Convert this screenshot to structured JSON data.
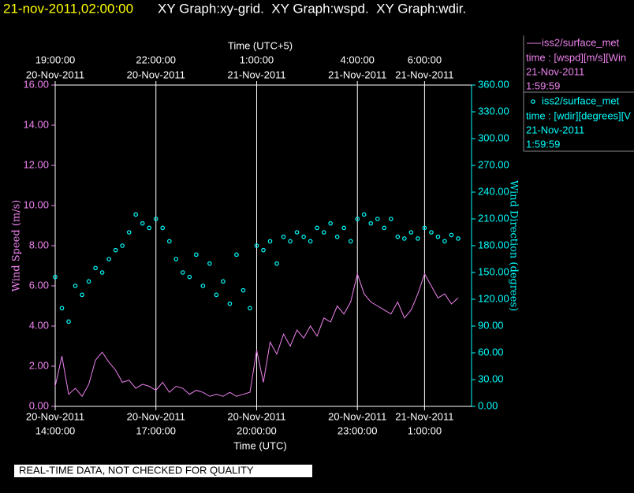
{
  "header": {
    "timestamp": "21-nov-2011,02:00:00",
    "title": "XY Graph:xy-grid.  XY Graph:wspd.  XY Graph:wdir."
  },
  "chart_data": {
    "type": "line",
    "xlabel": "Time (UTC)",
    "x2label": "Time (UTC+5)",
    "ylabel": "Wind Speed (m/s)",
    "y2label": "Wind Direction (degrees)",
    "xlim": [
      14,
      26.4
    ],
    "xticks": [
      {
        "value": 14,
        "label": [
          "20-Nov-2011",
          "14:00:00"
        ]
      },
      {
        "value": 17,
        "label": [
          "20-Nov-2011",
          "17:00:00"
        ]
      },
      {
        "value": 20,
        "label": [
          "20-Nov-2011",
          "20:00:00"
        ]
      },
      {
        "value": 23,
        "label": [
          "20-Nov-2011",
          "23:00:00"
        ]
      },
      {
        "value": 25,
        "label": [
          "21-Nov-2011",
          "1:00:00"
        ]
      }
    ],
    "x2ticks": [
      {
        "value": 14,
        "label": [
          "19:00:00",
          "20-Nov-2011"
        ]
      },
      {
        "value": 17,
        "label": [
          "22:00:00",
          "20-Nov-2011"
        ]
      },
      {
        "value": 20,
        "label": [
          "1:00:00",
          "21-Nov-2011"
        ]
      },
      {
        "value": 23,
        "label": [
          "4:00:00",
          "21-Nov-2011"
        ]
      },
      {
        "value": 25,
        "label": [
          "6:00:00",
          "21-Nov-2011"
        ]
      }
    ],
    "ylim": [
      0,
      16
    ],
    "yticks": [
      {
        "value": 0,
        "label": "0.00"
      },
      {
        "value": 2,
        "label": "2.00"
      },
      {
        "value": 4,
        "label": "4.00"
      },
      {
        "value": 6,
        "label": "6.00"
      },
      {
        "value": 8,
        "label": "8.00"
      },
      {
        "value": 10,
        "label": "10.00"
      },
      {
        "value": 12,
        "label": "12.00"
      },
      {
        "value": 14,
        "label": "14.00"
      },
      {
        "value": 16,
        "label": "16.00"
      }
    ],
    "y2lim": [
      0,
      360
    ],
    "y2ticks": [
      {
        "value": 0,
        "label": "0.00"
      },
      {
        "value": 30,
        "label": "30.00"
      },
      {
        "value": 60,
        "label": "60.00"
      },
      {
        "value": 90,
        "label": "90.00"
      },
      {
        "value": 120,
        "label": "120.00"
      },
      {
        "value": 150,
        "label": "150.00"
      },
      {
        "value": 180,
        "label": "180.00"
      },
      {
        "value": 210,
        "label": "210.00"
      },
      {
        "value": 240,
        "label": "240.00"
      },
      {
        "value": 270,
        "label": "270.00"
      },
      {
        "value": 300,
        "label": "300.00"
      },
      {
        "value": 330,
        "label": "330.00"
      },
      {
        "value": 360,
        "label": "360.00"
      }
    ],
    "grid": "x",
    "x": [
      14.0,
      14.2,
      14.4,
      14.6,
      14.8,
      15.0,
      15.2,
      15.4,
      15.6,
      15.8,
      16.0,
      16.2,
      16.4,
      16.6,
      16.8,
      17.0,
      17.2,
      17.4,
      17.6,
      17.8,
      18.0,
      18.2,
      18.4,
      18.6,
      18.8,
      19.0,
      19.2,
      19.4,
      19.6,
      19.8,
      20.0,
      20.2,
      20.4,
      20.6,
      20.8,
      21.0,
      21.2,
      21.4,
      21.6,
      21.8,
      22.0,
      22.2,
      22.4,
      22.6,
      22.8,
      23.0,
      23.2,
      23.4,
      23.6,
      23.8,
      24.0,
      24.2,
      24.4,
      24.6,
      24.8,
      25.0,
      25.2,
      25.4,
      25.6,
      25.8,
      26.0
    ],
    "series": [
      {
        "name": "iss2/surface_met",
        "type": "line",
        "color": "#ee82ee",
        "legend_lines": [
          "time : [wspd][m/s][Win",
          "21-Nov-2011",
          "1:59:59"
        ],
        "values": [
          1.0,
          2.5,
          0.6,
          0.9,
          0.5,
          1.1,
          2.3,
          2.7,
          2.2,
          1.8,
          1.2,
          1.3,
          0.9,
          1.1,
          1.0,
          0.8,
          1.2,
          0.7,
          1.0,
          0.9,
          0.6,
          0.8,
          0.7,
          0.5,
          0.6,
          0.5,
          0.7,
          0.5,
          0.6,
          0.7,
          2.8,
          1.2,
          3.2,
          2.6,
          3.6,
          3.0,
          3.8,
          3.4,
          4.0,
          3.5,
          4.4,
          4.2,
          5.0,
          4.6,
          5.2,
          6.6,
          5.6,
          5.2,
          5.0,
          4.8,
          4.6,
          5.2,
          4.4,
          4.8,
          5.6,
          6.6,
          6.0,
          5.4,
          5.6,
          5.1,
          5.4
        ]
      },
      {
        "name": "iss2/surface_met",
        "type": "scatter",
        "axis": "y2",
        "color": "#00ffff",
        "legend_lines": [
          "time : [wdir][degrees][V",
          "21-Nov-2011",
          "1:59:59"
        ],
        "values": [
          145,
          110,
          95,
          135,
          125,
          140,
          155,
          150,
          165,
          175,
          180,
          195,
          215,
          205,
          200,
          210,
          200,
          185,
          165,
          150,
          145,
          170,
          135,
          160,
          125,
          140,
          115,
          170,
          130,
          110,
          180,
          175,
          185,
          160,
          190,
          185,
          195,
          190,
          185,
          200,
          195,
          205,
          190,
          200,
          185,
          210,
          215,
          205,
          210,
          200,
          210,
          190,
          188,
          195,
          188,
          200,
          195,
          190,
          185,
          192,
          188
        ]
      }
    ]
  },
  "footer": "REAL-TIME DATA, NOT CHECKED FOR QUALITY"
}
